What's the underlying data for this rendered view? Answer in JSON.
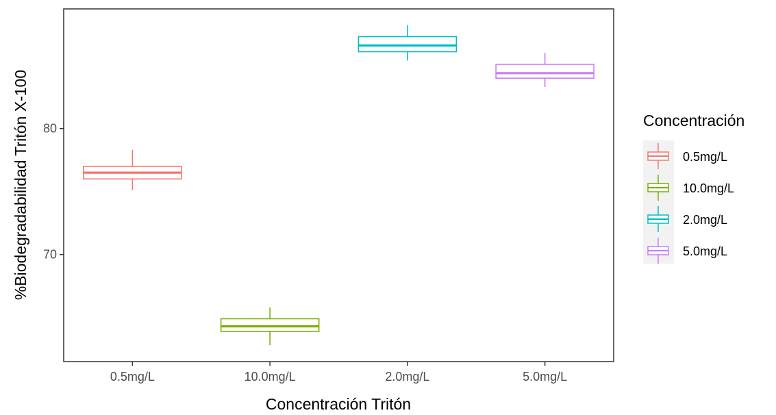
{
  "chart_data": {
    "type": "boxplot",
    "xlabel": "Concentración Tritón",
    "ylabel": "%Biodegradabilidad Tritón X-100",
    "categories": [
      "0.5mg/L",
      "10.0mg/L",
      "2.0mg/L",
      "5.0mg/L"
    ],
    "yticks": [
      "70",
      "80"
    ],
    "ylim": [
      61.5,
      89.5
    ],
    "grid": false,
    "legend": {
      "title": "Concentración",
      "position": "right",
      "entries": [
        "0.5mg/L",
        "10.0mg/L",
        "2.0mg/L",
        "5.0mg/L"
      ]
    },
    "series": [
      {
        "category": "0.5mg/L",
        "color": "#F8766D",
        "min": 75.1,
        "q1": 76.0,
        "median": 76.5,
        "q3": 77.0,
        "max": 78.3
      },
      {
        "category": "10.0mg/L",
        "color": "#7CAE00",
        "min": 62.8,
        "q1": 63.9,
        "median": 64.3,
        "q3": 64.9,
        "max": 65.8
      },
      {
        "category": "2.0mg/L",
        "color": "#00BFC4",
        "min": 85.4,
        "q1": 86.1,
        "median": 86.6,
        "q3": 87.3,
        "max": 88.2
      },
      {
        "category": "5.0mg/L",
        "color": "#C77CFF",
        "min": 83.3,
        "q1": 84.0,
        "median": 84.4,
        "q3": 85.1,
        "max": 86.0
      }
    ]
  }
}
